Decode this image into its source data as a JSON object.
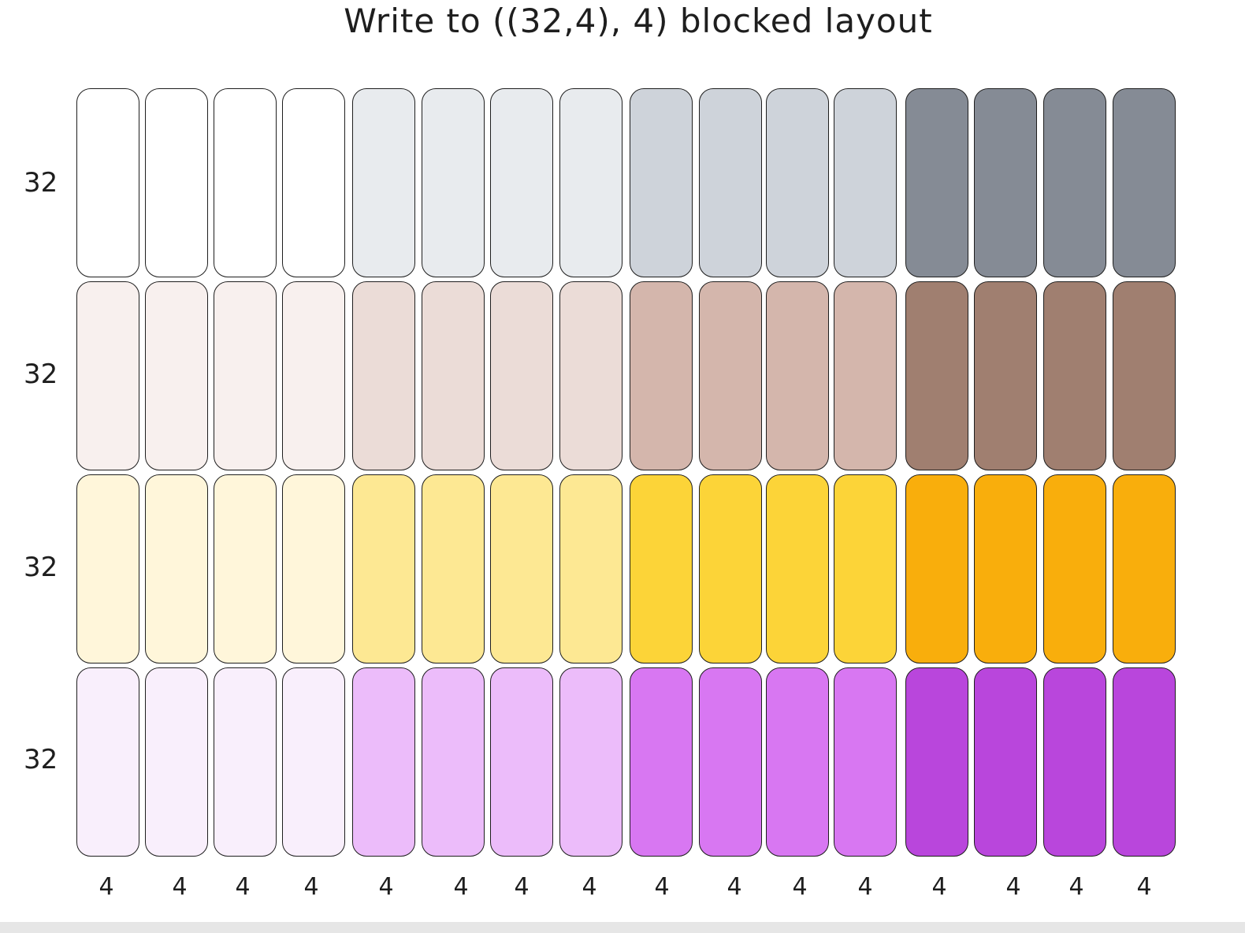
{
  "title": "Write to ((32,4), 4) blocked layout",
  "row_labels": [
    "32",
    "32",
    "32",
    "32"
  ],
  "column_labels": [
    "4",
    "4",
    "4",
    "4",
    "4",
    "4",
    "4",
    "4",
    "4",
    "4",
    "4",
    "4",
    "4",
    "4",
    "4",
    "4"
  ],
  "block_colors": [
    [
      "#ffffff",
      "#e8ebee",
      "#ced3da",
      "#858b95"
    ],
    [
      "#f8f0ee",
      "#ebdcd7",
      "#d4b6ac",
      "#a07f70"
    ],
    [
      "#fff6da",
      "#fde893",
      "#fcd438",
      "#f9ae0c"
    ],
    [
      "#f9effc",
      "#ecbcfa",
      "#d877f2",
      "#b946dc"
    ]
  ]
}
